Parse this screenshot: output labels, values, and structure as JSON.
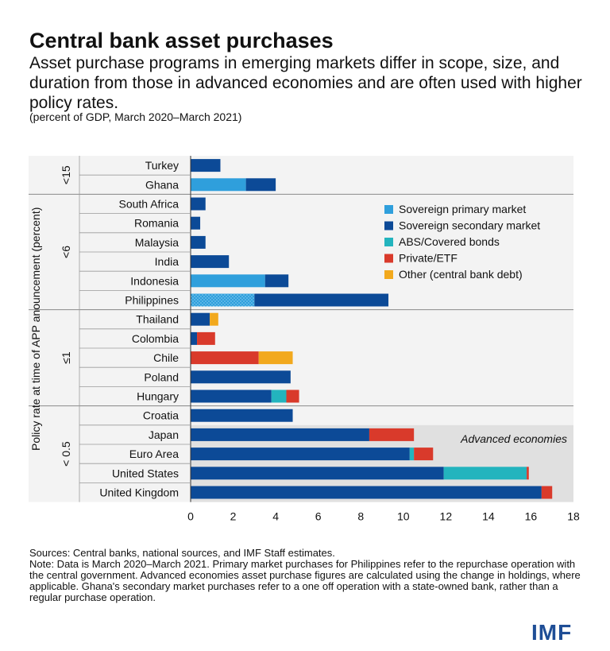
{
  "header": {
    "title": "Central bank asset purchases",
    "subtitle": "Asset purchase programs in emerging markets differ in scope, size, and duration from those in advanced economies and are often used with higher policy rates.",
    "unit": "(percent of GDP, March 2020–March 2021)"
  },
  "footer": {
    "sources": "Sources: Central banks, national sources, and IMF Staff estimates.",
    "note": "Note: Data is March 2020–March 2021. Primary market purchases for Philippines refer to the repurchase operation with the central government. Advanced economies asset purchase figures are calculated using the change in holdings, where applicable. Ghana's secondary market purchases refer to a one off operation with a state-owned bank, rather than a regular purchase operation.",
    "logo": "IMF"
  },
  "chart_data": {
    "type": "bar",
    "orientation": "horizontal",
    "stacked": true,
    "title": "Central bank asset purchases",
    "xlabel": "",
    "ylabel": "Policy rate at time of APP anouncement (percent)",
    "xlim": [
      0,
      18
    ],
    "xticks": [
      "0",
      "2",
      "4",
      "6",
      "8",
      "10",
      "12",
      "14",
      "16",
      "18"
    ],
    "categories": [
      "Turkey",
      "Ghana",
      "South Africa",
      "Romania",
      "Malaysia",
      "India",
      "Indonesia",
      "Philippines",
      "Thailand",
      "Colombia",
      "Chile",
      "Poland",
      "Hungary",
      "Croatia",
      "Japan",
      "Euro Area",
      "United States",
      "United Kingdom"
    ],
    "groups": [
      {
        "label": "<15",
        "count": 2
      },
      {
        "label": "<6",
        "count": 6
      },
      {
        "label": "≤1",
        "count": 5
      },
      {
        "label": "< 0.5",
        "count": 5
      }
    ],
    "series": [
      {
        "name": "Sovereign primary market",
        "color": "#2f9fdc",
        "values": [
          0,
          2.6,
          0,
          0,
          0,
          0,
          3.5,
          3.0,
          0,
          0,
          0,
          0,
          0,
          0,
          0,
          0,
          0,
          0
        ]
      },
      {
        "name": "Sovereign secondary market",
        "color": "#0c4a97",
        "values": [
          1.4,
          1.4,
          0.7,
          0.45,
          0.7,
          1.8,
          1.1,
          6.3,
          0.9,
          0.3,
          0,
          4.7,
          3.8,
          4.8,
          8.4,
          10.3,
          11.9,
          16.5
        ]
      },
      {
        "name": "ABS/Covered bonds",
        "color": "#23b4be",
        "values": [
          0,
          0,
          0,
          0,
          0,
          0,
          0,
          0,
          0,
          0,
          0,
          0,
          0.7,
          0,
          0,
          0.2,
          3.9,
          0
        ]
      },
      {
        "name": "Private/ETF",
        "color": "#d93a2b",
        "values": [
          0,
          0,
          0,
          0,
          0,
          0,
          0,
          0,
          0,
          0.85,
          3.2,
          0,
          0.6,
          0,
          2.1,
          0.9,
          0.1,
          0.5
        ]
      },
      {
        "name": "Other (central bank debt)",
        "color": "#f2a91d",
        "values": [
          0,
          0,
          0,
          0,
          0,
          0,
          0,
          0,
          0.4,
          0,
          1.6,
          0,
          0,
          0,
          0,
          0,
          0,
          0
        ]
      }
    ],
    "annotations": [
      "Advanced economies"
    ],
    "legend": "top-right"
  }
}
